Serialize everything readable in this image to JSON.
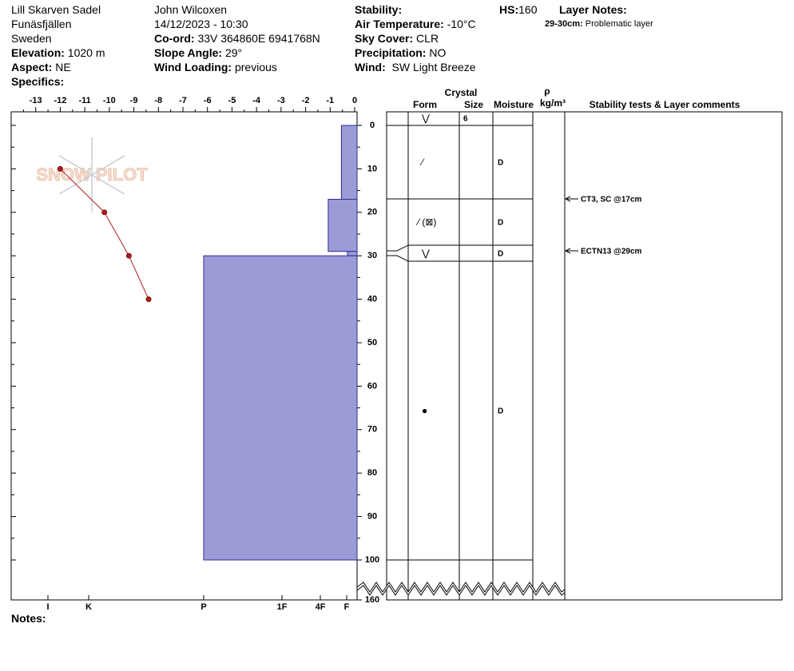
{
  "site": {
    "name": "Lill Skarven Sadel",
    "area": "Funäsfjällen",
    "country": "Sweden",
    "elevation": {
      "label": "Elevation:",
      "value": "1020 m"
    },
    "aspect": {
      "label": "Aspect:",
      "value": "NE"
    },
    "specifics": {
      "label": "Specifics:"
    }
  },
  "observation": {
    "observer": "John Wilcoxen",
    "datetime": "14/12/2023 - 10:30",
    "coord": {
      "label": "Co-ord:",
      "value": "33V 364860E 6941768N"
    },
    "slope": {
      "label": "Slope Angle:",
      "value": "29°"
    },
    "wind_loading": {
      "label": "Wind Loading:",
      "value": "previous"
    }
  },
  "conditions": {
    "stability": {
      "label": "Stability:"
    },
    "air_temperature": {
      "label": "Air Temperature:",
      "value": "-10°C"
    },
    "sky_cover": {
      "label": "Sky Cover:",
      "value": "CLR"
    },
    "precipitation": {
      "label": "Precipitation:",
      "value": "NO"
    },
    "wind": {
      "label": "Wind:",
      "value": "SW Light Breeze"
    }
  },
  "hs": {
    "label": "HS:",
    "value": 160
  },
  "layer_notes": {
    "label": "Layer Notes:",
    "items": [
      {
        "range": "29-30cm:",
        "text": "Problematic layer"
      }
    ]
  },
  "notes": {
    "label": "Notes:"
  },
  "logo": "SNOW PILOT",
  "chart_data": [
    {
      "type": "line",
      "x": [
        -12,
        -10.2,
        -9.2,
        -8.4
      ],
      "values": [
        10,
        20,
        30,
        40
      ],
      "color": "#b01c1c",
      "xlim": [
        -14,
        0
      ],
      "xticks": [
        -13,
        -12,
        -11,
        -10,
        -9,
        -8,
        -7,
        -6,
        -5,
        -4,
        -3,
        -2,
        -1,
        0
      ],
      "ylim": [
        0,
        160
      ],
      "yticks": [
        0,
        10,
        20,
        30,
        40,
        50,
        60,
        70,
        80,
        90,
        100,
        160
      ]
    },
    {
      "type": "hardness",
      "color": "#9b9bd8",
      "xticks": [
        {
          "value": 6,
          "label": "I"
        },
        {
          "value": 5,
          "label": "K"
        },
        {
          "value": 4,
          "label": "P"
        },
        {
          "value": 3,
          "label": "1F"
        },
        {
          "value": 2,
          "label": "4F"
        },
        {
          "value": 1,
          "label": "F"
        }
      ],
      "layers": [
        {
          "top": 0,
          "bottom": 17,
          "hardness": 1.2
        },
        {
          "top": 17,
          "bottom": 29,
          "hardness": 1.7
        },
        {
          "top": 29,
          "bottom": 30,
          "hardness": 0.9
        },
        {
          "top": 30,
          "bottom": 100,
          "hardness": 4
        }
      ]
    }
  ],
  "table": {
    "crystal": "Crystal",
    "form": "Form",
    "size": "Size",
    "moisture": "Moisture",
    "rho": "ρ",
    "density_unit": "kg/m³",
    "comments": "Stability tests & Layer comments",
    "rows": [
      {
        "form": "⋁",
        "size": "6"
      },
      {
        "form": "⁄",
        "moisture": "D"
      },
      {
        "form": "⁄ (⊠)",
        "moisture": "D"
      },
      {
        "form": "⋁",
        "moisture": "D"
      },
      {
        "form": "●",
        "moisture": "D"
      }
    ],
    "stability_comments": [
      "CT3, SC @17cm",
      "ECTN13 @29cm"
    ]
  }
}
